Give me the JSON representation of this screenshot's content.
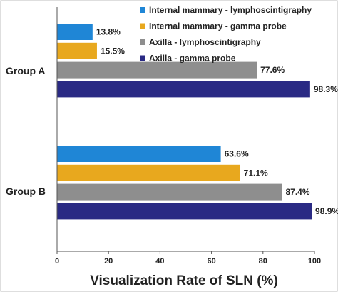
{
  "chart_data": {
    "type": "bar",
    "orientation": "horizontal",
    "categories": [
      "Group A",
      "Group B"
    ],
    "series": [
      {
        "name": "Internal mammary - lymphoscintigraphy",
        "values": [
          13.8,
          63.6
        ],
        "labels": [
          "13.8%",
          "63.6%"
        ],
        "color": "#1f86d6"
      },
      {
        "name": "Internal mammary - gamma probe",
        "values": [
          15.5,
          71.1
        ],
        "labels": [
          "15.5%",
          "71.1%"
        ],
        "color": "#e8a81e"
      },
      {
        "name": "Axilla - lymphoscintigraphy",
        "values": [
          77.6,
          87.4
        ],
        "labels": [
          "77.6%",
          "87.4%"
        ],
        "color": "#8e8e8e"
      },
      {
        "name": "Axilla - gamma probe",
        "values": [
          98.3,
          98.9
        ],
        "labels": [
          "98.3%",
          "98.9%"
        ],
        "color": "#2a2a84"
      }
    ],
    "xlabel": "Visualization Rate of SLN (%)",
    "xlim": [
      0,
      100
    ],
    "xticks": [
      0,
      20,
      40,
      60,
      80,
      100
    ],
    "grid": false,
    "legend_position": "top-right"
  }
}
